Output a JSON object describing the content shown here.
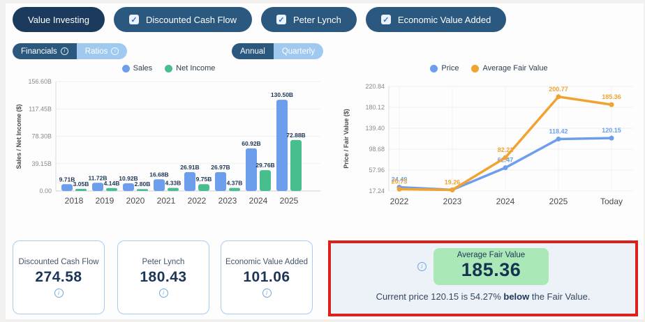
{
  "toolbar": {
    "tabs": [
      {
        "label": "Value Investing",
        "active": true,
        "checkbox": false
      },
      {
        "label": "Discounted Cash Flow",
        "checkbox": true,
        "checked": true
      },
      {
        "label": "Peter Lynch",
        "checkbox": true,
        "checked": true
      },
      {
        "label": "Economic Value Added",
        "checkbox": true,
        "checked": true
      }
    ]
  },
  "filters": {
    "statement_toggle": {
      "options": [
        "Financials",
        "Ratios"
      ],
      "selected": "Financials"
    },
    "period_toggle": {
      "options": [
        "Annual",
        "Quarterly"
      ],
      "selected": "Annual"
    }
  },
  "chart_data": [
    {
      "type": "bar",
      "title": "",
      "ylabel": "Sales / Net Income ($)",
      "categories": [
        "2018",
        "2019",
        "2020",
        "2021",
        "2022",
        "2023",
        "2024",
        "2025"
      ],
      "yticks": [
        "0.00",
        "39.15B",
        "78.30B",
        "117.45B",
        "156.60B"
      ],
      "ytick_values": [
        0,
        39.15,
        78.3,
        117.45,
        156.6
      ],
      "ylim": [
        0,
        156.6
      ],
      "legend_position": "top",
      "grid": true,
      "series": [
        {
          "name": "Sales",
          "color": "#6d9eeb",
          "values": [
            9.71,
            11.72,
            10.92,
            16.68,
            26.91,
            26.97,
            60.92,
            130.5
          ],
          "labels": [
            "9.71B",
            "11.72B",
            "10.92B",
            "16.68B",
            "26.91B",
            "26.97B",
            "60.92B",
            "130.50B"
          ]
        },
        {
          "name": "Net Income",
          "color": "#48bd8e",
          "values": [
            3.05,
            4.14,
            2.8,
            4.33,
            9.75,
            4.37,
            29.76,
            72.88
          ],
          "labels": [
            "3.05B",
            "4.14B",
            "2.80B",
            "4.33B",
            "9.75B",
            "4.37B",
            "29.76B",
            "72.88B"
          ]
        }
      ]
    },
    {
      "type": "line",
      "title": "",
      "ylabel": "Price / Fair Value ($)",
      "categories": [
        "2022",
        "2023",
        "2024",
        "2025",
        "Today"
      ],
      "yticks": [
        "17.24",
        "57.96",
        "98.68",
        "139.40",
        "180.12",
        "220.84"
      ],
      "ytick_values": [
        17.24,
        57.96,
        98.68,
        139.4,
        180.12,
        220.84
      ],
      "ylim": [
        17.24,
        220.84
      ],
      "legend_position": "top",
      "grid": true,
      "series": [
        {
          "name": "Price",
          "color": "#6d9eeb",
          "values": [
            24.49,
            19.52,
            62.47,
            118.42,
            120.15
          ],
          "labels": [
            "24.49",
            "",
            "62.47",
            "118.42",
            "120.15"
          ]
        },
        {
          "name": "Average Fair Value",
          "color": "#f0a331",
          "values": [
            20.73,
            19.26,
            82.21,
            200.77,
            185.36
          ],
          "labels": [
            "20.73",
            "19.26",
            "82.21",
            "200.77",
            "185.36"
          ]
        }
      ]
    }
  ],
  "cards": [
    {
      "title": "Discounted Cash Flow",
      "value": "274.58"
    },
    {
      "title": "Peter Lynch",
      "value": "180.43"
    },
    {
      "title": "Economic Value Added",
      "value": "101.06"
    }
  ],
  "fair_value_panel": {
    "label": "Average Fair Value",
    "value": "185.36",
    "summary_prefix": "Current price 120.15 is 54.27% ",
    "summary_bold": "below",
    "summary_suffix": " the Fair Value."
  }
}
